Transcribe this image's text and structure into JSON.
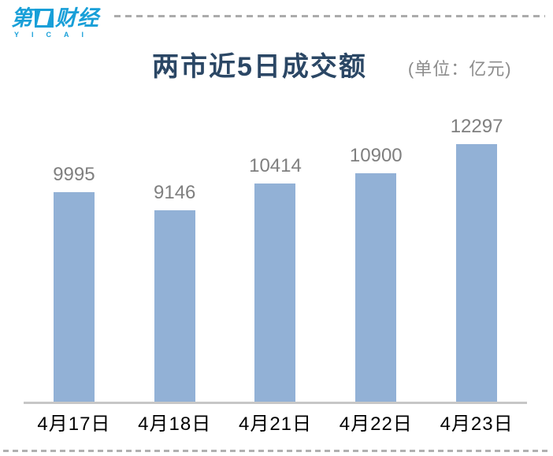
{
  "header": {
    "logo": {
      "char_first": "第",
      "chars_rest": "财经",
      "subtext": "YICAI",
      "brand_color": "#189FD8"
    }
  },
  "chart": {
    "title": "两市近5日成交额",
    "unit_label": "(单位：亿元)"
  },
  "chart_data": {
    "type": "bar",
    "title": "两市近5日成交额",
    "unit": "亿元",
    "categories": [
      "4月17日",
      "4月18日",
      "4月21日",
      "4月22日",
      "4月23日"
    ],
    "values": [
      9995,
      9146,
      10414,
      10900,
      12297
    ],
    "xlabel": "",
    "ylabel": "",
    "ylim": [
      0,
      13000
    ],
    "grid": false,
    "legend": false,
    "bar_color": "#92B1D6",
    "value_label_color": "#7F7F7F",
    "axis_line_color": "#C7C7C7",
    "title_color": "#2B4765"
  }
}
